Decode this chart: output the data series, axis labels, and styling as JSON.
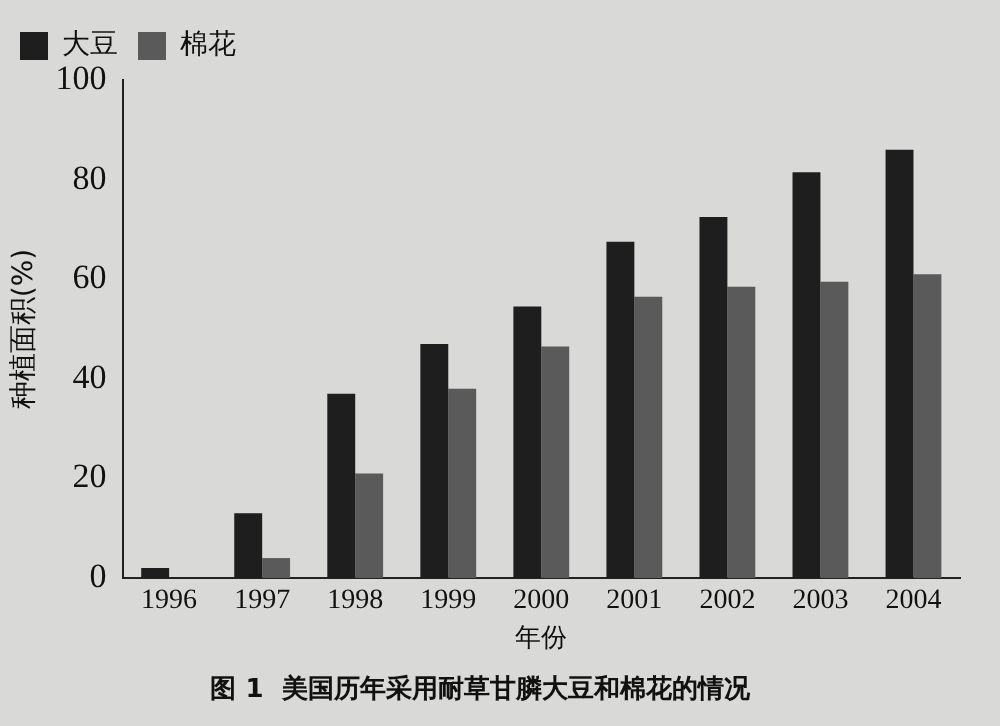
{
  "chart_data": {
    "type": "bar",
    "title": "图 1  美国历年采用耐草甘膦大豆和棉花的情况",
    "xlabel": "年份",
    "ylabel": "种植面积(%)",
    "categories": [
      "1996",
      "1997",
      "1998",
      "1999",
      "2000",
      "2001",
      "2002",
      "2003",
      "2004"
    ],
    "series": [
      {
        "name": "大豆",
        "color": "#1e1e1e",
        "values": [
          2,
          13,
          37,
          47,
          54.5,
          67.5,
          72.5,
          81.5,
          86
        ]
      },
      {
        "name": "棉花",
        "color": "#5a5a5a",
        "values": [
          0,
          4,
          21,
          38,
          46.5,
          56.5,
          58.5,
          59.5,
          61
        ]
      }
    ],
    "ylim": [
      0,
      100
    ],
    "yticks": [
      0,
      20,
      40,
      60,
      80,
      100
    ],
    "grid": false,
    "legend": "top left"
  }
}
